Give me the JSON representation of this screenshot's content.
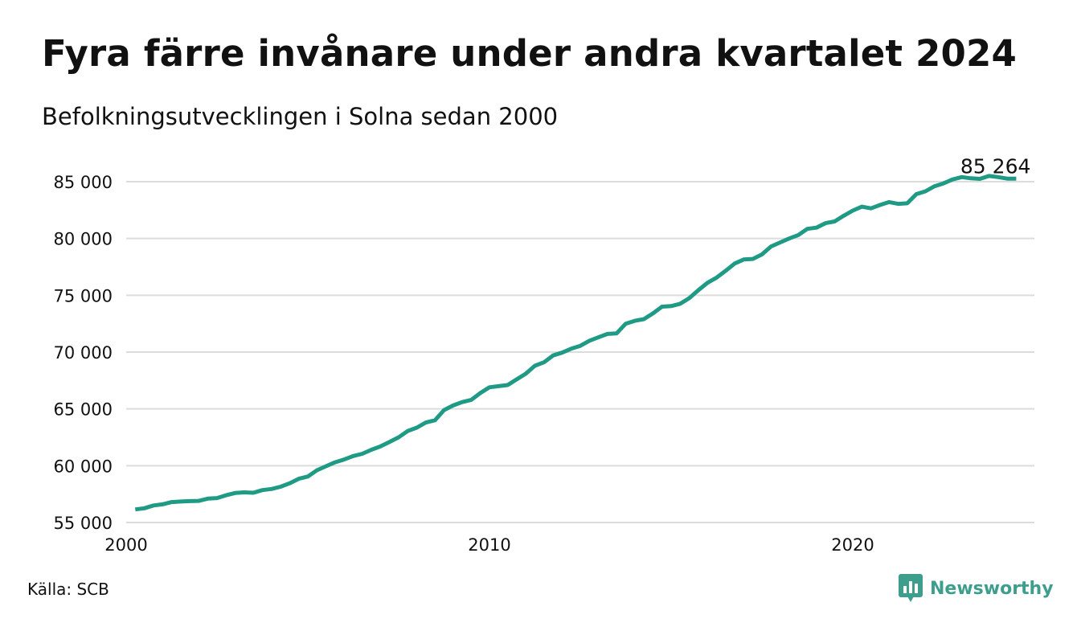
{
  "header": {
    "title": "Fyra färre invånare under andra kvartalet 2024",
    "subtitle": "Befolkningsutvecklingen i Solna sedan 2000"
  },
  "footer": {
    "source": "Källa: SCB",
    "brand": "Newsworthy"
  },
  "colors": {
    "line": "#1f9a85",
    "grid": "#dcdcdc",
    "brand": "#3e9e8e",
    "text": "#111111"
  },
  "chart_data": {
    "type": "line",
    "title": "Fyra färre invånare under andra kvartalet 2024",
    "subtitle": "Befolkningsutvecklingen i Solna sedan 2000",
    "xlabel": "",
    "ylabel": "",
    "x_start": 2000.25,
    "x_step": 0.25,
    "xlim": [
      2000,
      2025
    ],
    "ylim": [
      55000,
      85000
    ],
    "x_ticks": [
      2000,
      2010,
      2020
    ],
    "x_tick_labels": [
      "2000",
      "2010",
      "2020"
    ],
    "y_ticks": [
      55000,
      60000,
      65000,
      70000,
      75000,
      80000,
      85000
    ],
    "y_tick_labels": [
      "55 000",
      "60 000",
      "65 000",
      "70 000",
      "75 000",
      "80 000",
      "85 000"
    ],
    "grid": true,
    "end_label": "85 264",
    "series": [
      {
        "values": [
          56150,
          56250,
          56500,
          56600,
          56800,
          56850,
          56880,
          56900,
          57100,
          57150,
          57400,
          57600,
          57650,
          57620,
          57850,
          57950,
          58150,
          58450,
          58850,
          59050,
          59600,
          59950,
          60300,
          60550,
          60850,
          61050,
          61400,
          61700,
          62100,
          62500,
          63050,
          63350,
          63800,
          64000,
          64900,
          65300,
          65600,
          65800,
          66400,
          66900,
          67000,
          67100,
          67600,
          68100,
          68800,
          69100,
          69700,
          69950,
          70300,
          70550,
          71000,
          71300,
          71600,
          71650,
          72500,
          72750,
          72900,
          73400,
          74000,
          74050,
          74250,
          74750,
          75450,
          76100,
          76550,
          77150,
          77800,
          78150,
          78200,
          78600,
          79300,
          79650,
          80000,
          80300,
          80850,
          80950,
          81350,
          81500,
          82000,
          82450,
          82800,
          82650,
          82950,
          83200,
          83050,
          83100,
          83900,
          84150,
          84600,
          84850,
          85200,
          85400,
          85300,
          85250,
          85500,
          85400,
          85268,
          85264
        ]
      }
    ]
  }
}
